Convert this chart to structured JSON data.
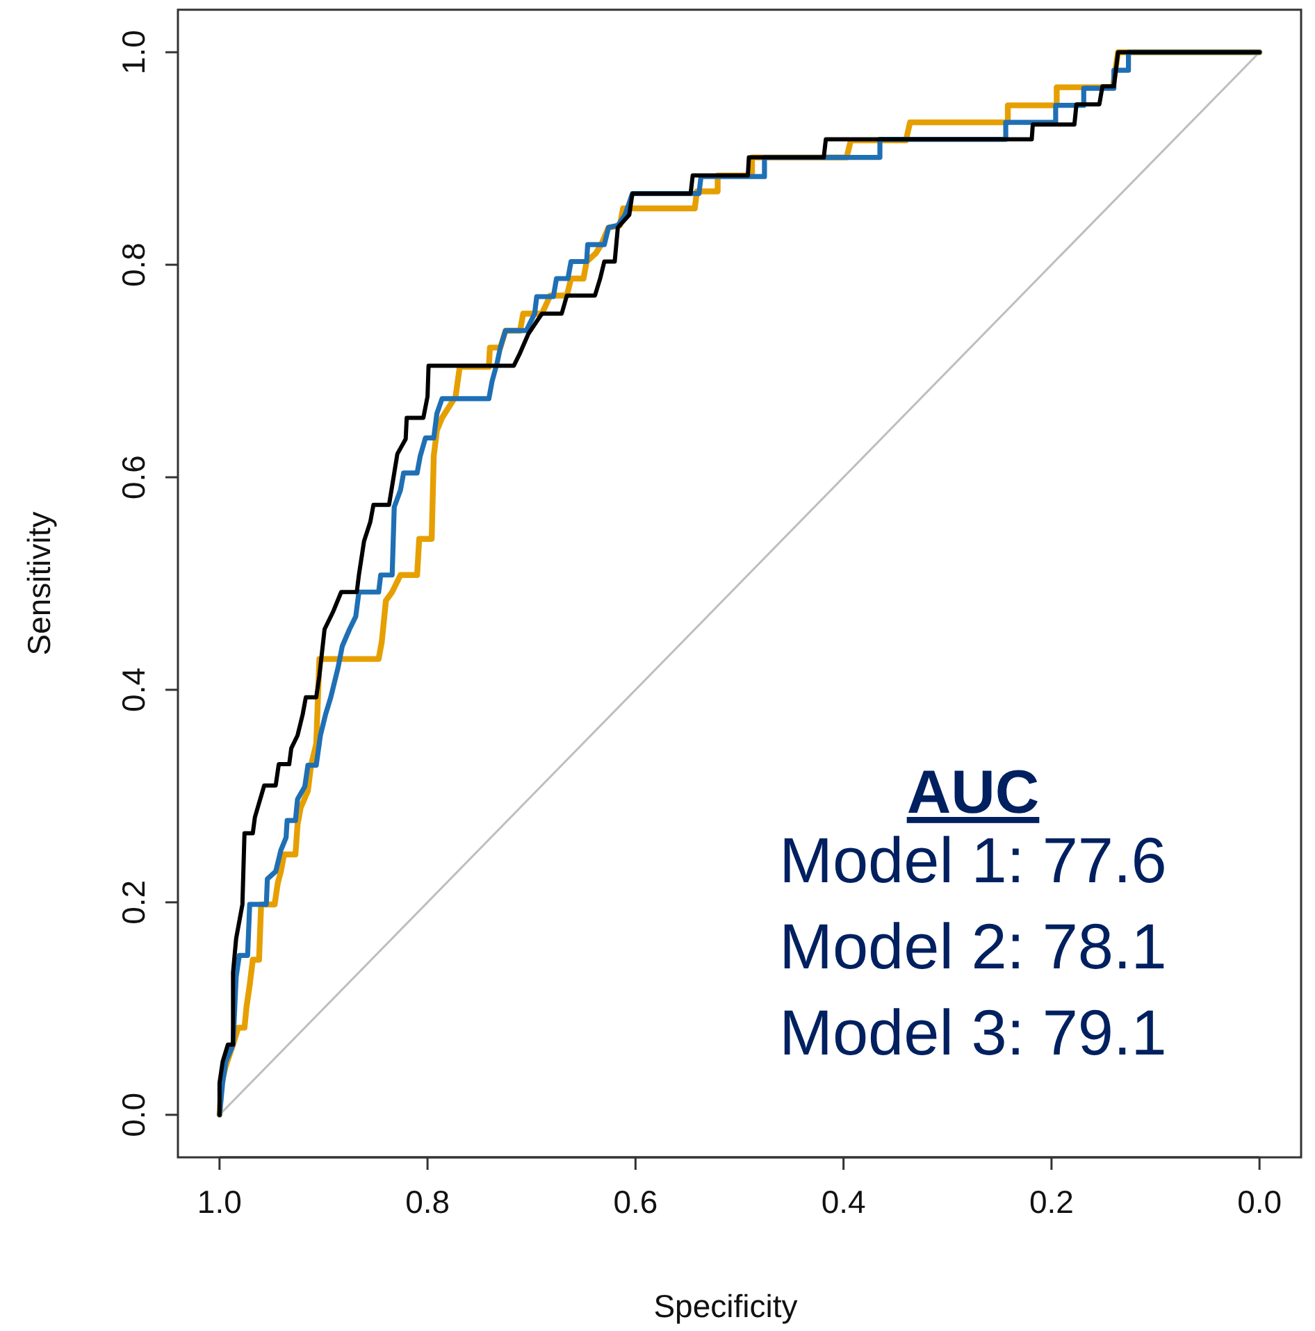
{
  "chart_data": {
    "type": "line",
    "xlabel": "Specificity",
    "ylabel": "Sensitivity",
    "xlim": [
      1.04,
      -0.04
    ],
    "ylim": [
      -0.04,
      1.04
    ],
    "xticks": [
      {
        "value": 1,
        "label": "1.0"
      },
      {
        "value": 0.8,
        "label": "0.8"
      },
      {
        "value": 0.6,
        "label": "0.6"
      },
      {
        "value": 0.4,
        "label": "0.4"
      },
      {
        "value": 0.2,
        "label": "0.2"
      },
      {
        "value": 0,
        "label": "0.0"
      }
    ],
    "yticks": [
      {
        "value": 0,
        "label": "0.0"
      },
      {
        "value": 0.2,
        "label": "0.2"
      },
      {
        "value": 0.4,
        "label": "0.4"
      },
      {
        "value": 0.6,
        "label": "0.6"
      },
      {
        "value": 0.8,
        "label": "0.8"
      },
      {
        "value": 1,
        "label": "1.0"
      }
    ],
    "grid": false,
    "marker": "none",
    "line_style": "solid",
    "annotations": [
      "AUC",
      "Model 1: 77.6",
      "Model 2: 78.1",
      "Model 3: 79.1"
    ],
    "series": [
      {
        "color": "#bebebe",
        "x": [
          1,
          0
        ],
        "values": [
          0,
          1
        ]
      },
      {
        "color": "#e69f00",
        "x": [
          1,
          0.998,
          0.994,
          0.987,
          0.982,
          0.976,
          0.974,
          0.971,
          0.968,
          0.962,
          0.96,
          0.947,
          0.944,
          0.941,
          0.938,
          0.927,
          0.925,
          0.922,
          0.915,
          0.912,
          0.907,
          0.904,
          0.847,
          0.844,
          0.84,
          0.834,
          0.826,
          0.81,
          0.808,
          0.796,
          0.794,
          0.791,
          0.786,
          0.773,
          0.769,
          0.741,
          0.74,
          0.73,
          0.725,
          0.711,
          0.708,
          0.69,
          0.682,
          0.666,
          0.662,
          0.65,
          0.647,
          0.638,
          0.633,
          0.626,
          0.615,
          0.612,
          0.543,
          0.541,
          0.521,
          0.521,
          0.488,
          0.488,
          0.397,
          0.393,
          0.34,
          0.336,
          0.242,
          0.242,
          0.195,
          0.195,
          0.141,
          0.136,
          0
        ],
        "values": [
          0,
          0.03,
          0.046,
          0.066,
          0.082,
          0.082,
          0.102,
          0.122,
          0.146,
          0.146,
          0.198,
          0.198,
          0.218,
          0.229,
          0.245,
          0.245,
          0.273,
          0.289,
          0.305,
          0.329,
          0.349,
          0.429,
          0.429,
          0.445,
          0.484,
          0.492,
          0.508,
          0.508,
          0.542,
          0.542,
          0.62,
          0.644,
          0.656,
          0.676,
          0.704,
          0.704,
          0.722,
          0.722,
          0.738,
          0.738,
          0.754,
          0.754,
          0.771,
          0.771,
          0.787,
          0.787,
          0.803,
          0.811,
          0.819,
          0.835,
          0.837,
          0.853,
          0.853,
          0.869,
          0.869,
          0.884,
          0.884,
          0.901,
          0.901,
          0.917,
          0.917,
          0.934,
          0.934,
          0.95,
          0.95,
          0.967,
          0.967,
          1,
          1
        ]
      },
      {
        "color": "#1f6fb5",
        "x": [
          1,
          0.997,
          0.994,
          0.987,
          0.984,
          0.981,
          0.973,
          0.971,
          0.955,
          0.954,
          0.946,
          0.941,
          0.936,
          0.935,
          0.927,
          0.925,
          0.918,
          0.915,
          0.907,
          0.903,
          0.898,
          0.893,
          0.886,
          0.882,
          0.875,
          0.869,
          0.866,
          0.847,
          0.845,
          0.834,
          0.832,
          0.826,
          0.823,
          0.81,
          0.807,
          0.802,
          0.794,
          0.791,
          0.786,
          0.741,
          0.738,
          0.733,
          0.73,
          0.725,
          0.705,
          0.697,
          0.695,
          0.679,
          0.676,
          0.665,
          0.662,
          0.647,
          0.646,
          0.63,
          0.626,
          0.617,
          0.61,
          0.603,
          0.539,
          0.537,
          0.476,
          0.476,
          0.365,
          0.365,
          0.244,
          0.244,
          0.196,
          0.196,
          0.169,
          0.169,
          0.14,
          0.14,
          0.126,
          0.126,
          0
        ],
        "values": [
          0,
          0.03,
          0.05,
          0.066,
          0.13,
          0.15,
          0.15,
          0.198,
          0.198,
          0.222,
          0.229,
          0.249,
          0.261,
          0.277,
          0.277,
          0.297,
          0.309,
          0.329,
          0.329,
          0.357,
          0.377,
          0.393,
          0.421,
          0.441,
          0.457,
          0.469,
          0.492,
          0.492,
          0.508,
          0.508,
          0.572,
          0.588,
          0.604,
          0.604,
          0.62,
          0.637,
          0.637,
          0.66,
          0.674,
          0.674,
          0.69,
          0.708,
          0.722,
          0.738,
          0.738,
          0.754,
          0.77,
          0.77,
          0.787,
          0.787,
          0.803,
          0.803,
          0.819,
          0.819,
          0.835,
          0.837,
          0.847,
          0.867,
          0.867,
          0.883,
          0.883,
          0.901,
          0.901,
          0.918,
          0.918,
          0.934,
          0.934,
          0.95,
          0.95,
          0.966,
          0.966,
          0.983,
          0.983,
          1,
          1
        ]
      },
      {
        "color": "#000000",
        "x": [
          1,
          1,
          0.997,
          0.992,
          0.987,
          0.987,
          0.984,
          0.978,
          0.976,
          0.968,
          0.966,
          0.96,
          0.957,
          0.946,
          0.943,
          0.933,
          0.931,
          0.925,
          0.92,
          0.917,
          0.907,
          0.904,
          0.899,
          0.891,
          0.883,
          0.868,
          0.866,
          0.861,
          0.855,
          0.852,
          0.837,
          0.834,
          0.829,
          0.821,
          0.82,
          0.804,
          0.8,
          0.799,
          0.717,
          0.711,
          0.703,
          0.69,
          0.671,
          0.666,
          0.639,
          0.634,
          0.63,
          0.62,
          0.617,
          0.606,
          0.603,
          0.547,
          0.545,
          0.492,
          0.491,
          0.419,
          0.417,
          0.219,
          0.218,
          0.178,
          0.176,
          0.154,
          0.151,
          0.14,
          0.136,
          0
        ],
        "values": [
          0,
          0.03,
          0.05,
          0.066,
          0.066,
          0.134,
          0.166,
          0.198,
          0.265,
          0.265,
          0.28,
          0.3,
          0.31,
          0.31,
          0.33,
          0.33,
          0.345,
          0.357,
          0.377,
          0.393,
          0.393,
          0.413,
          0.457,
          0.473,
          0.492,
          0.492,
          0.508,
          0.54,
          0.558,
          0.574,
          0.574,
          0.592,
          0.622,
          0.636,
          0.656,
          0.656,
          0.676,
          0.705,
          0.705,
          0.717,
          0.735,
          0.754,
          0.754,
          0.771,
          0.771,
          0.787,
          0.803,
          0.803,
          0.835,
          0.847,
          0.867,
          0.867,
          0.884,
          0.884,
          0.901,
          0.901,
          0.918,
          0.918,
          0.932,
          0.932,
          0.951,
          0.951,
          0.968,
          0.968,
          1,
          1
        ]
      }
    ]
  }
}
